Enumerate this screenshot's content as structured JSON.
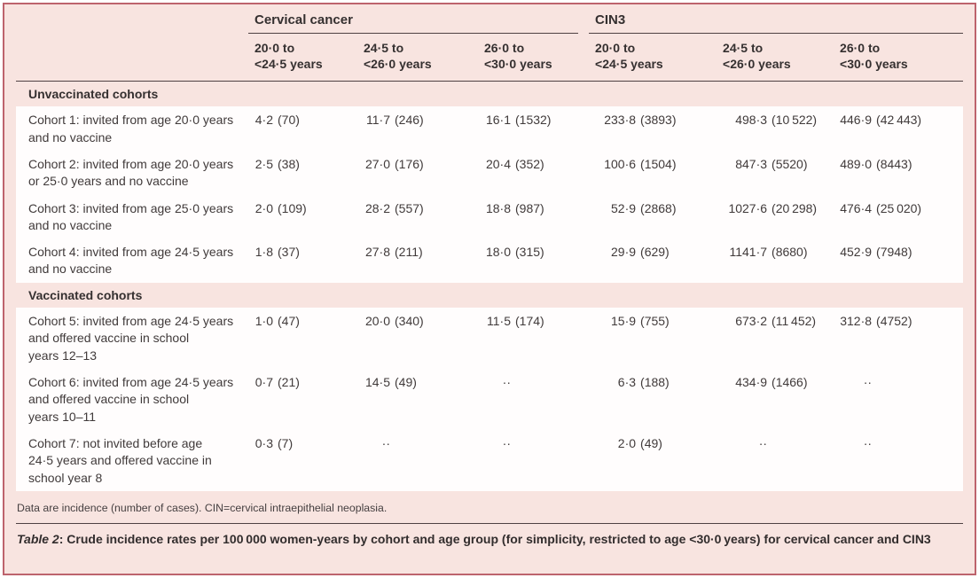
{
  "table": {
    "groups": [
      {
        "label": "Cervical cancer"
      },
      {
        "label": "CIN3"
      }
    ],
    "age_ranges": [
      "20·0 to\n<24·5 years",
      "24·5 to\n<26·0 years",
      "26·0 to\n<30·0 years"
    ],
    "sections": [
      {
        "title": "Unvaccinated cohorts",
        "rows": [
          {
            "label": "Cohort 1: invited from age 20·0 years\nand no vaccine",
            "values": [
              {
                "rate": "4·2",
                "cases": "(70)"
              },
              {
                "rate": "11·7",
                "cases": "(246)"
              },
              {
                "rate": "16·1",
                "cases": "(1532)"
              },
              {
                "rate": "233·8",
                "cases": "(3893)"
              },
              {
                "rate": "498·3",
                "cases": "(10 522)"
              },
              {
                "rate": "446·9",
                "cases": "(42 443)"
              }
            ]
          },
          {
            "label": "Cohort 2: invited from age 20·0 years\nor 25·0 years and no vaccine",
            "values": [
              {
                "rate": "2·5",
                "cases": "(38)"
              },
              {
                "rate": "27·0",
                "cases": "(176)"
              },
              {
                "rate": "20·4",
                "cases": "(352)"
              },
              {
                "rate": "100·6",
                "cases": "(1504)"
              },
              {
                "rate": "847·3",
                "cases": "(5520)"
              },
              {
                "rate": "489·0",
                "cases": "(8443)"
              }
            ]
          },
          {
            "label": "Cohort 3: invited from age 25·0 years\nand no vaccine",
            "values": [
              {
                "rate": "2·0",
                "cases": "(109)"
              },
              {
                "rate": "28·2",
                "cases": "(557)"
              },
              {
                "rate": "18·8",
                "cases": "(987)"
              },
              {
                "rate": "52·9",
                "cases": "(2868)"
              },
              {
                "rate": "1027·6",
                "cases": "(20 298)"
              },
              {
                "rate": "476·4",
                "cases": "(25 020)"
              }
            ]
          },
          {
            "label": "Cohort 4: invited from age 24·5 years\nand no vaccine",
            "values": [
              {
                "rate": "1·8",
                "cases": "(37)"
              },
              {
                "rate": "27·8",
                "cases": "(211)"
              },
              {
                "rate": "18·0",
                "cases": "(315)"
              },
              {
                "rate": "29·9",
                "cases": "(629)"
              },
              {
                "rate": "1141·7",
                "cases": "(8680)"
              },
              {
                "rate": "452·9",
                "cases": "(7948)"
              }
            ]
          }
        ]
      },
      {
        "title": "Vaccinated cohorts",
        "rows": [
          {
            "label": "Cohort 5: invited from age 24·5 years\nand offered vaccine in school\nyears 12–13",
            "values": [
              {
                "rate": "1·0",
                "cases": "(47)"
              },
              {
                "rate": "20·0",
                "cases": "(340)"
              },
              {
                "rate": "11·5",
                "cases": "(174)"
              },
              {
                "rate": "15·9",
                "cases": "(755)"
              },
              {
                "rate": "673·2",
                "cases": "(11 452)"
              },
              {
                "rate": "312·8",
                "cases": "(4752)"
              }
            ]
          },
          {
            "label": "Cohort 6: invited from age 24·5 years\nand offered vaccine in school\nyears 10–11",
            "values": [
              {
                "rate": "0·7",
                "cases": "(21)"
              },
              {
                "rate": "14·5",
                "cases": "(49)"
              },
              {
                "rate": "··",
                "cases": ""
              },
              {
                "rate": "6·3",
                "cases": "(188)"
              },
              {
                "rate": "434·9",
                "cases": "(1466)"
              },
              {
                "rate": "··",
                "cases": ""
              }
            ]
          },
          {
            "label": "Cohort 7: not invited before age\n24·5 years and offered vaccine in\nschool year 8",
            "values": [
              {
                "rate": "0·3",
                "cases": "(7)"
              },
              {
                "rate": "··",
                "cases": ""
              },
              {
                "rate": "··",
                "cases": ""
              },
              {
                "rate": "2·0",
                "cases": "(49)"
              },
              {
                "rate": "··",
                "cases": ""
              },
              {
                "rate": "··",
                "cases": ""
              }
            ]
          }
        ]
      }
    ],
    "footnote": "Data are incidence (number of cases). CIN=cervical intraepithelial neoplasia.",
    "caption_label": "Table 2",
    "caption_text": ": Crude incidence rates per 100 000 women-years by cohort and age group (for simplicity, restricted to age <30·0 years) for cervical cancer and CIN3"
  },
  "colors": {
    "background_pink": "#f8e4e0",
    "row_white": "#fffdfd",
    "border_rose": "#bd636d",
    "rule_dark": "#4f4143",
    "text": "#403a3a"
  }
}
